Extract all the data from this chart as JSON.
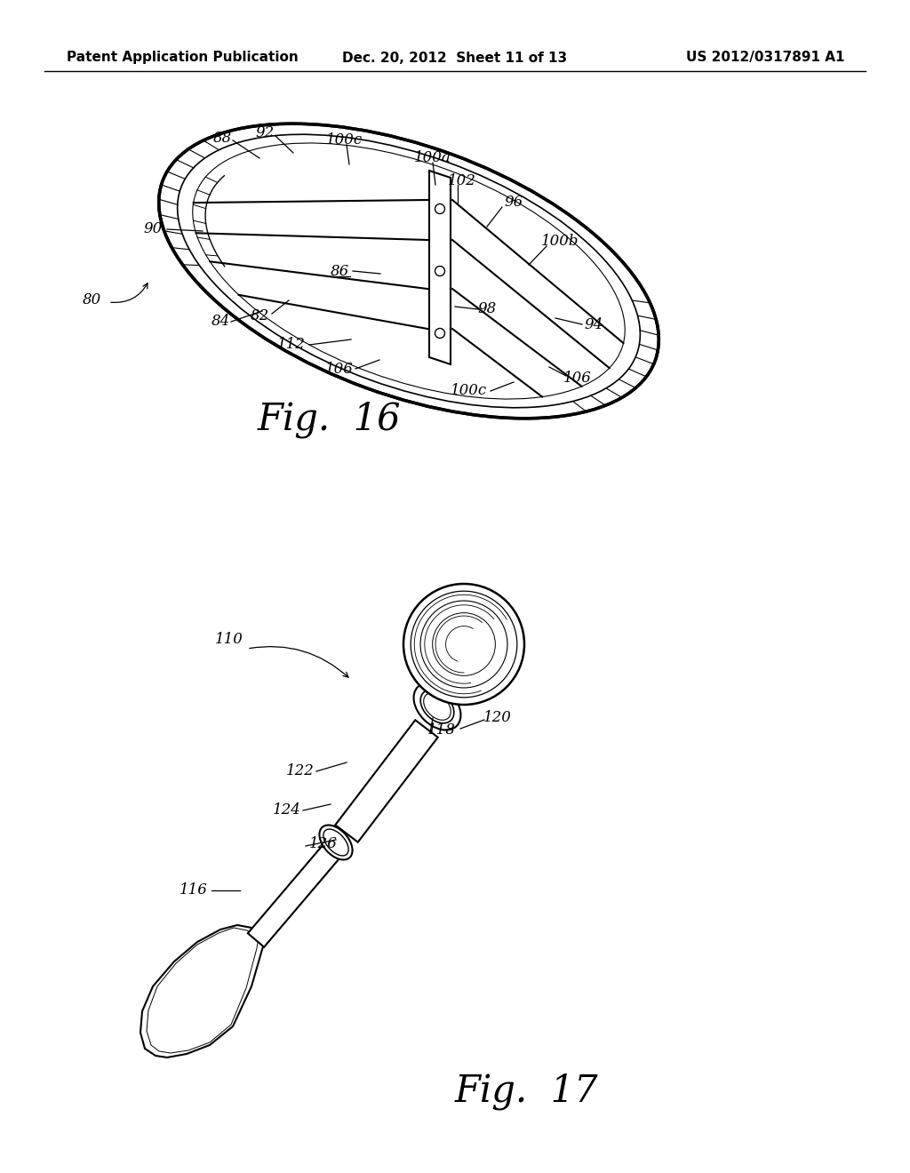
{
  "bg_color": "#ffffff",
  "line_color": "#000000",
  "header_left": "Patent Application Publication",
  "header_center": "Dec. 20, 2012  Sheet 11 of 13",
  "header_right": "US 2012/0317891 A1",
  "header_fontsize": 11,
  "label_fontsize": 12,
  "caption_fontsize": 30
}
